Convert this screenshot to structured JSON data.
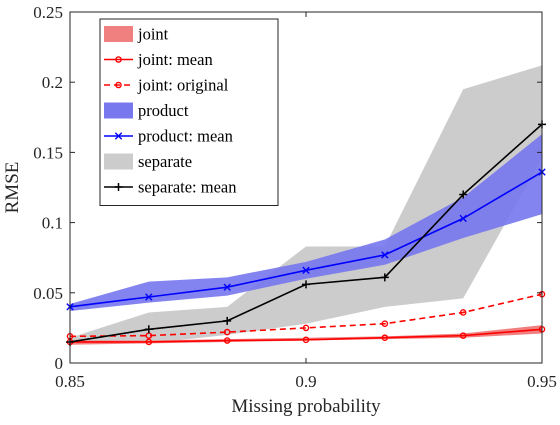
{
  "chart_data": {
    "type": "line",
    "title": "",
    "xlabel": "Missing probability",
    "ylabel": "RMSE",
    "xlim": [
      0.85,
      0.95
    ],
    "ylim": [
      0,
      0.25
    ],
    "xticks": [
      0.85,
      0.9,
      0.95
    ],
    "xtick_labels": [
      "0.85",
      "0.9",
      "0.95"
    ],
    "yticks": [
      0,
      0.05,
      0.1,
      0.15,
      0.2,
      0.25
    ],
    "ytick_labels": [
      "0",
      "0.05",
      "0.1",
      "0.15",
      "0.2",
      "0.25"
    ],
    "grid": false,
    "legend_position": "top-left",
    "x": [
      0.85,
      0.8667,
      0.8833,
      0.9,
      0.9167,
      0.9333,
      0.95
    ],
    "bands": [
      {
        "name": "separate",
        "color": "#cccccc",
        "lower": [
          0.014,
          0.014,
          0.02,
          0.028,
          0.04,
          0.046,
          0.146
        ],
        "upper": [
          0.018,
          0.036,
          0.04,
          0.083,
          0.083,
          0.195,
          0.212
        ]
      },
      {
        "name": "product",
        "color": "#7777ee",
        "lower": [
          0.037,
          0.043,
          0.048,
          0.06,
          0.07,
          0.089,
          0.106
        ],
        "upper": [
          0.042,
          0.058,
          0.061,
          0.072,
          0.088,
          0.118,
          0.163
        ]
      },
      {
        "name": "joint",
        "color": "#f08080",
        "lower": [
          0.013,
          0.014,
          0.015,
          0.016,
          0.017,
          0.018,
          0.021
        ],
        "upper": [
          0.016,
          0.016,
          0.017,
          0.018,
          0.019,
          0.021,
          0.027
        ]
      }
    ],
    "series": [
      {
        "name": "joint: mean",
        "color": "#ff0000",
        "dash": "solid",
        "marker": "circle-open",
        "values": [
          0.015,
          0.015,
          0.016,
          0.0165,
          0.018,
          0.0195,
          0.024
        ]
      },
      {
        "name": "joint: original",
        "color": "#ff0000",
        "dash": "dashed",
        "marker": "circle-open",
        "values": [
          0.019,
          0.0195,
          0.022,
          0.025,
          0.028,
          0.036,
          0.049
        ]
      },
      {
        "name": "product: mean",
        "color": "#0000ff",
        "dash": "solid",
        "marker": "x",
        "values": [
          0.04,
          0.047,
          0.054,
          0.066,
          0.077,
          0.103,
          0.136
        ]
      },
      {
        "name": "separate: mean",
        "color": "#000000",
        "dash": "solid",
        "marker": "plus",
        "values": [
          0.015,
          0.024,
          0.03,
          0.056,
          0.061,
          0.12,
          0.17
        ]
      }
    ],
    "legend": [
      {
        "label": "joint",
        "kind": "band",
        "color": "#f08080"
      },
      {
        "label": "joint: mean",
        "kind": "line",
        "color": "#ff0000",
        "dash": "solid",
        "marker": "circle-open"
      },
      {
        "label": "joint: original",
        "kind": "line",
        "color": "#ff0000",
        "dash": "dashed",
        "marker": "circle-open"
      },
      {
        "label": "product",
        "kind": "band",
        "color": "#7777ee"
      },
      {
        "label": "product: mean",
        "kind": "line",
        "color": "#0000ff",
        "dash": "solid",
        "marker": "x"
      },
      {
        "label": "separate",
        "kind": "band",
        "color": "#cccccc"
      },
      {
        "label": "separate: mean",
        "kind": "line",
        "color": "#000000",
        "dash": "solid",
        "marker": "plus"
      }
    ]
  }
}
